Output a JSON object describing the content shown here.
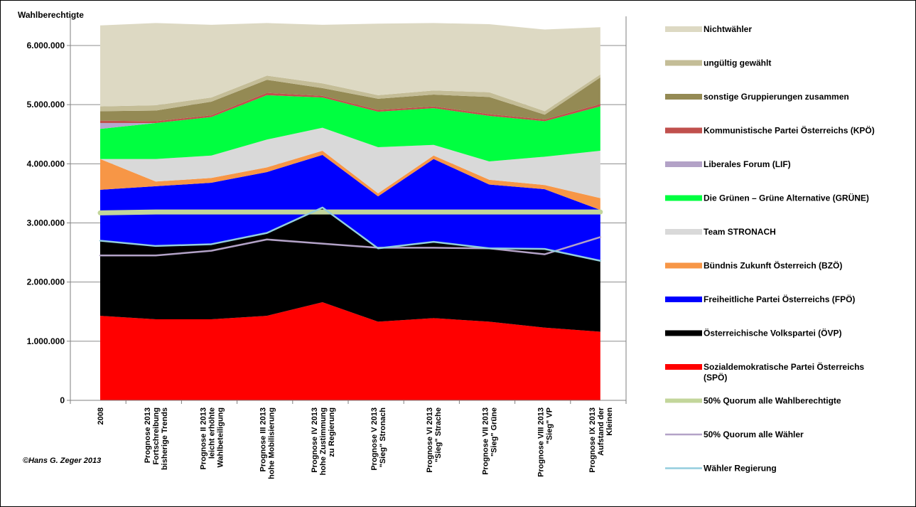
{
  "chart_data": {
    "type": "area",
    "ylabel": "Wahlberechtigte",
    "ylim": [
      0,
      6000000
    ],
    "y_ticks": [
      0,
      1000000,
      2000000,
      3000000,
      4000000,
      5000000,
      6000000
    ],
    "y_tick_labels": [
      "0",
      "1.000.000",
      "2.000.000",
      "3.000.000",
      "4.000.000",
      "5.000.000",
      "6.000.000"
    ],
    "grid": "horizontal",
    "legend_position": "right",
    "categories": [
      [
        "2008"
      ],
      [
        "Prognose 2013",
        "Fortschreibung",
        "bisherige Trends"
      ],
      [
        "Prognose II 2013",
        "leicht erhöhte",
        "Wahlbeteiligung"
      ],
      [
        "Prognose III 2013",
        "hohe Mobilisierung"
      ],
      [
        "Prognose IV 2013",
        "hohe Zustimmung",
        "zu Regierung"
      ],
      [
        "Prognose V 2013",
        "\"Sieg\" Stronach"
      ],
      [
        "Prognose VI 2013",
        "\"Sieg\" Strache"
      ],
      [
        "Prognose VII 2013",
        "\"Sieg\" Grüne"
      ],
      [
        "Prognose VIII 2013",
        "\"Sieg\" VP"
      ],
      [
        "Prognose IX 2013",
        "Aufstand der",
        "Kleinen"
      ]
    ],
    "series": [
      {
        "name": "Sozialdemokratische Partei Österreichs (SPÖ)",
        "color": "#ff0000",
        "values": [
          1430000,
          1370000,
          1370000,
          1430000,
          1660000,
          1330000,
          1390000,
          1330000,
          1230000,
          1160000
        ]
      },
      {
        "name": "Österreichische Volkspartei (ÖVP)",
        "color": "#000000",
        "values": [
          1270000,
          1240000,
          1270000,
          1400000,
          1600000,
          1240000,
          1290000,
          1240000,
          1330000,
          1200000
        ]
      },
      {
        "name": "Freiheitliche Partei Österreichs (FPÖ)",
        "color": "#0000ff",
        "values": [
          860000,
          1010000,
          1040000,
          1030000,
          890000,
          880000,
          1400000,
          1080000,
          1010000,
          860000
        ]
      },
      {
        "name": "Bündnis Zukunft Österreich (BZÖ)",
        "color": "#f79646",
        "values": [
          520000,
          80000,
          80000,
          80000,
          70000,
          50000,
          60000,
          80000,
          70000,
          200000
        ]
      },
      {
        "name": "Team STRONACH",
        "color": "#d9d9d9",
        "values": [
          0,
          380000,
          380000,
          470000,
          390000,
          780000,
          180000,
          310000,
          480000,
          800000
        ]
      },
      {
        "name": "Die Grünen – Grüne Alternative (GRÜNE)",
        "color": "#00ff40",
        "values": [
          510000,
          610000,
          650000,
          750000,
          510000,
          600000,
          620000,
          770000,
          600000,
          750000
        ]
      },
      {
        "name": "Liberales Forum (LIF)",
        "color": "#b7a6cf",
        "values": [
          100000,
          0,
          0,
          0,
          0,
          0,
          0,
          0,
          0,
          0
        ]
      },
      {
        "name": "Kommunistische Partei Österreichs (KPÖ)",
        "color": "#c0504d",
        "values": [
          40000,
          30000,
          30000,
          40000,
          30000,
          30000,
          30000,
          30000,
          30000,
          40000
        ]
      },
      {
        "name": "sonstige Gruppierungen zusammen",
        "color": "#948a54",
        "values": [
          160000,
          180000,
          230000,
          220000,
          130000,
          190000,
          200000,
          290000,
          80000,
          450000
        ]
      },
      {
        "name": "ungültig gewählt",
        "color": "#c4bd97",
        "values": [
          80000,
          90000,
          70000,
          70000,
          80000,
          60000,
          70000,
          80000,
          60000,
          50000
        ]
      },
      {
        "name": "Nichtwähler",
        "color": "#ddd9c3",
        "values": [
          1370000,
          1390000,
          1230000,
          890000,
          990000,
          1210000,
          1140000,
          1150000,
          1380000,
          800000
        ]
      }
    ],
    "lines": [
      {
        "name": "50% Quorum alle Wahlberechtigte",
        "color": "#c3d69b",
        "width": 7,
        "values": [
          3170000,
          3185000,
          3185000,
          3185000,
          3185000,
          3185000,
          3185000,
          3185000,
          3185000,
          3185000
        ]
      },
      {
        "name": "50% Quorum alle Wähler",
        "color": "#b3a2c7",
        "width": 2.5,
        "values": [
          2450000,
          2450000,
          2530000,
          2720000,
          2650000,
          2580000,
          2580000,
          2570000,
          2470000,
          2760000
        ]
      },
      {
        "name": "Wähler Regierung",
        "color": "#93cddd",
        "width": 2.5,
        "values": [
          2700000,
          2610000,
          2640000,
          2830000,
          3260000,
          2570000,
          2680000,
          2570000,
          2560000,
          2360000
        ]
      }
    ],
    "legend_order": [
      "Nichtwähler",
      "ungültig gewählt",
      "sonstige Gruppierungen  zusammen",
      "Kommunistische Partei Österreichs (KPÖ)",
      "Liberales Forum (LIF)",
      "Die Grünen – Grüne Alternative (GRÜNE)",
      "Team STRONACH",
      "Bündnis Zukunft Österreich (BZÖ)",
      "Freiheitliche Partei Österreichs (FPÖ)",
      "Österreichische Volkspartei (ÖVP)",
      "Sozialdemokratische Partei Österreichs (SPÖ)",
      "50% Quorum alle Wahlberechtigte",
      "50% Quorum alle Wähler",
      "Wähler Regierung"
    ],
    "legend_colors": [
      "#ddd9c3",
      "#c4bd97",
      "#948a54",
      "#c0504d",
      "#b3a2c7",
      "#00ff40",
      "#d9d9d9",
      "#f79646",
      "#0000ff",
      "#000000",
      "#ff0000",
      "#c3d69b",
      "#b3a2c7",
      "#93cddd"
    ],
    "legend_kinds": [
      "area",
      "area",
      "area",
      "area",
      "area",
      "area",
      "area",
      "area",
      "area",
      "area",
      "area",
      "line",
      "line",
      "line"
    ],
    "credit": "©Hans G. Zeger 2013"
  }
}
